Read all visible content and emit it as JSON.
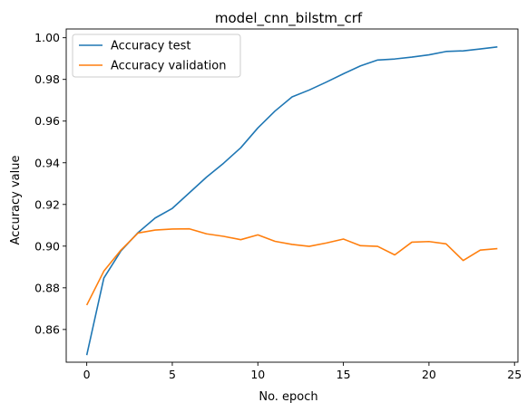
{
  "chart_data": {
    "type": "line",
    "title": "model_cnn_bilstm_crf",
    "xlabel": "No. epoch",
    "ylabel": "Accuracy value",
    "xlim": [
      -1.2,
      25.2
    ],
    "ylim": [
      0.8443,
      1.0042
    ],
    "xticks": [
      "0",
      "5",
      "10",
      "15",
      "20",
      "25"
    ],
    "yticks": [
      "0.86",
      "0.88",
      "0.90",
      "0.92",
      "0.94",
      "0.96",
      "0.98",
      "1.00"
    ],
    "grid": false,
    "legend_position": "top-left",
    "x": [
      0,
      1,
      2,
      3,
      4,
      5,
      6,
      7,
      8,
      9,
      10,
      11,
      12,
      13,
      14,
      15,
      16,
      17,
      18,
      19,
      20,
      21,
      22,
      23,
      24
    ],
    "series": [
      {
        "name": "Accuracy test",
        "color": "#1f77b4",
        "values": [
          0.8477,
          0.8847,
          0.8977,
          0.9065,
          0.9135,
          0.9181,
          0.9256,
          0.9331,
          0.9398,
          0.9472,
          0.9567,
          0.9648,
          0.9716,
          0.9749,
          0.9787,
          0.9827,
          0.9865,
          0.9893,
          0.9898,
          0.9907,
          0.9918,
          0.9934,
          0.9937,
          0.9946,
          0.9956
        ]
      },
      {
        "name": "Accuracy validation",
        "color": "#ff7f0e",
        "values": [
          0.8717,
          0.888,
          0.8981,
          0.9063,
          0.9077,
          0.9082,
          0.9083,
          0.9059,
          0.9047,
          0.9031,
          0.9054,
          0.9023,
          0.9008,
          0.8999,
          0.9015,
          0.9034,
          0.9002,
          0.8999,
          0.8958,
          0.9019,
          0.9022,
          0.9011,
          0.8931,
          0.8981,
          0.8988
        ]
      }
    ]
  }
}
